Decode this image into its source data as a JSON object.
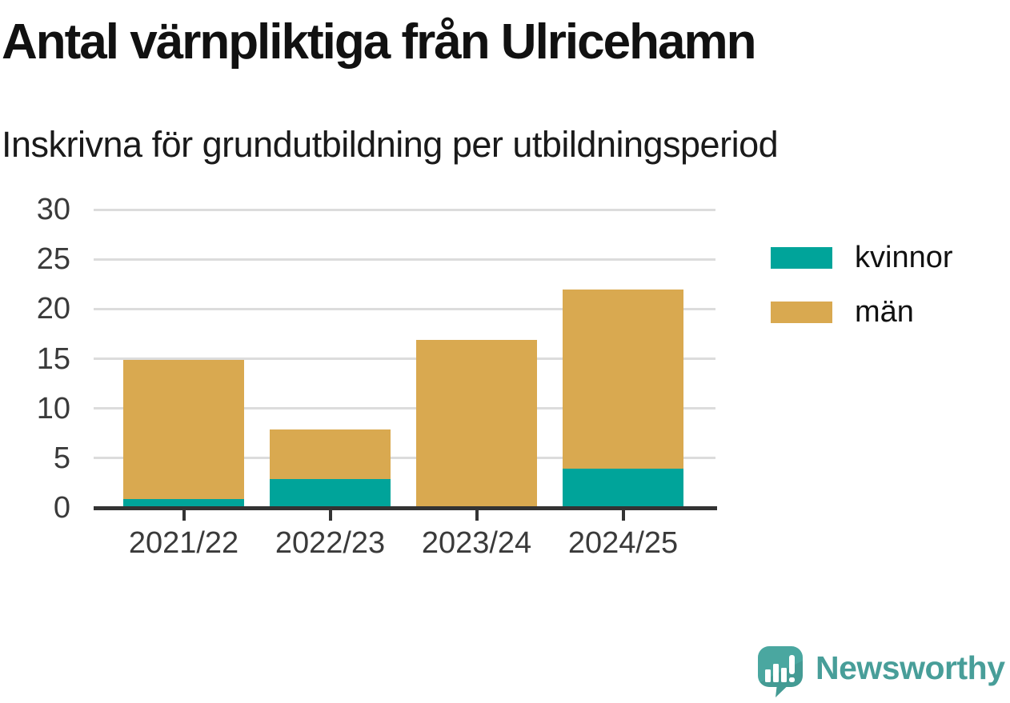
{
  "title": "Antal värnpliktiga från Ulricehamn",
  "subtitle": "Inskrivna för grundutbildning per utbildningsperiod",
  "chart_data": {
    "type": "bar",
    "stacked": true,
    "title": "Antal värnpliktiga från Ulricehamn",
    "subtitle": "Inskrivna för grundutbildning per utbildningsperiod",
    "categories": [
      "2021/22",
      "2022/23",
      "2023/24",
      "2024/25"
    ],
    "series": [
      {
        "name": "kvinnor",
        "color": "#00a49a",
        "values": [
          1,
          3,
          0,
          4
        ]
      },
      {
        "name": "män",
        "color": "#d9a950",
        "values": [
          14,
          5,
          17,
          18
        ]
      }
    ],
    "stack_totals": [
      15,
      8,
      17,
      22
    ],
    "xlabel": "",
    "ylabel": "",
    "ylim": [
      0,
      30
    ],
    "yticks": [
      0,
      5,
      10,
      15,
      20,
      25,
      30
    ],
    "grid": "horizontal",
    "legend_position": "right"
  },
  "colors": {
    "kvinnor": "#00a49a",
    "man": "#d9a950",
    "gridline": "#dcdcdc",
    "axis": "#333333",
    "tick_text": "#3a3a3a",
    "brand_teal": "#489e99"
  },
  "branding": {
    "wordmark": "Newsworthy",
    "icon": "newsworthy-speech-bubble-bar-chart-icon"
  }
}
